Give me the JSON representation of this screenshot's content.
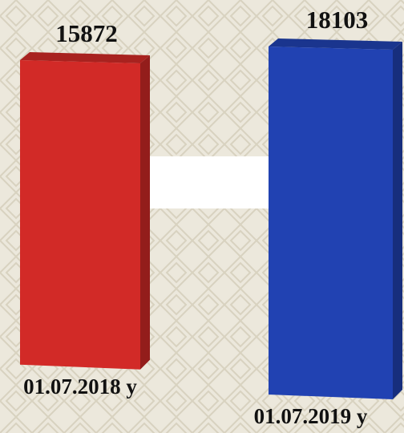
{
  "chart_data": {
    "type": "bar3d",
    "categories": [
      "01.07.2018 y",
      "01.07.2019 y"
    ],
    "series": [
      {
        "values": [
          15872,
          18103
        ],
        "colors": [
          "#d22a27",
          "#2142b2"
        ]
      }
    ]
  }
}
